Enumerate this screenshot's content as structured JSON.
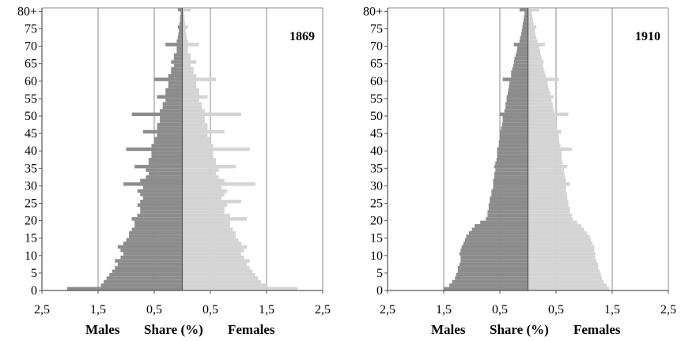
{
  "page": {
    "footer_labels": {
      "left": {
        "males": "Males",
        "share": "Share (%)",
        "females": "Females"
      },
      "right": {
        "males": "Males",
        "share": "Share (%)",
        "females": "Females"
      }
    }
  },
  "colors": {
    "males": "#8c8c8c",
    "females": "#d4d4d4",
    "grid": "#8a8a8a",
    "axis": "#555555"
  },
  "chart_data": [
    {
      "type": "bar",
      "orientation": "horizontal-population-pyramid",
      "title": "1869",
      "xlabel": "Share (%)",
      "x_tick_labels": [
        "2,5",
        "1,5",
        "0,5",
        "0,5",
        "1,5",
        "2,5"
      ],
      "x_tick_positions": [
        -2.5,
        -1.5,
        -0.5,
        0.5,
        1.5,
        2.5
      ],
      "xlim": [
        -2.5,
        2.5
      ],
      "y_tick_labels": [
        "0",
        "5",
        "10",
        "15",
        "20",
        "25",
        "30",
        "35",
        "40",
        "45",
        "50",
        "55",
        "60",
        "65",
        "70",
        "75",
        "80+"
      ],
      "grid": true,
      "series": [
        {
          "name": "Males",
          "values": [
            2.05,
            1.45,
            1.4,
            1.35,
            1.3,
            1.25,
            1.2,
            1.15,
            1.2,
            1.1,
            1.05,
            1.1,
            1.15,
            1.05,
            1.0,
            0.95,
            0.95,
            0.9,
            0.85,
            0.85,
            0.9,
            0.8,
            0.75,
            0.75,
            0.8,
            0.75,
            0.7,
            0.75,
            0.8,
            0.7,
            1.05,
            0.75,
            0.65,
            0.6,
            0.65,
            0.85,
            0.6,
            0.6,
            0.55,
            0.55,
            1.0,
            0.55,
            0.5,
            0.5,
            0.45,
            0.7,
            0.45,
            0.45,
            0.4,
            0.4,
            0.9,
            0.4,
            0.35,
            0.35,
            0.3,
            0.45,
            0.3,
            0.3,
            0.25,
            0.25,
            0.5,
            0.25,
            0.2,
            0.2,
            0.15,
            0.2,
            0.15,
            0.15,
            0.1,
            0.1,
            0.3,
            0.1,
            0.08,
            0.07,
            0.06,
            0.08,
            0.05,
            0.04,
            0.04,
            0.03,
            0.08
          ]
        },
        {
          "name": "Females",
          "values": [
            2.05,
            1.5,
            1.4,
            1.35,
            1.3,
            1.25,
            1.2,
            1.15,
            1.2,
            1.1,
            1.05,
            1.1,
            1.15,
            1.05,
            1.0,
            0.95,
            0.95,
            0.9,
            0.85,
            0.85,
            1.15,
            0.85,
            0.75,
            0.75,
            0.8,
            1.05,
            0.7,
            0.75,
            0.8,
            0.7,
            1.3,
            0.75,
            0.65,
            0.6,
            0.65,
            0.95,
            0.6,
            0.6,
            0.55,
            0.55,
            1.2,
            0.55,
            0.5,
            0.5,
            0.45,
            0.75,
            0.45,
            0.45,
            0.4,
            0.4,
            1.05,
            0.4,
            0.35,
            0.35,
            0.3,
            0.45,
            0.3,
            0.3,
            0.25,
            0.25,
            0.6,
            0.25,
            0.2,
            0.2,
            0.15,
            0.25,
            0.15,
            0.15,
            0.1,
            0.1,
            0.3,
            0.1,
            0.08,
            0.07,
            0.06,
            0.1,
            0.05,
            0.04,
            0.04,
            0.03,
            0.15
          ]
        }
      ]
    },
    {
      "type": "bar",
      "orientation": "horizontal-population-pyramid",
      "title": "1910",
      "xlabel": "Share (%)",
      "x_tick_labels": [
        "2,5",
        "1,5",
        "0,5",
        "0,5",
        "1,5",
        "2,5"
      ],
      "x_tick_positions": [
        -2.5,
        -1.5,
        -0.5,
        0.5,
        1.5,
        2.5
      ],
      "xlim": [
        -2.5,
        2.5
      ],
      "y_tick_labels": [
        "0",
        "5",
        "10",
        "15",
        "20",
        "25",
        "30",
        "35",
        "40",
        "45",
        "50",
        "55",
        "60",
        "65",
        "70",
        "75",
        "80+"
      ],
      "grid": true,
      "series": [
        {
          "name": "Males",
          "values": [
            1.5,
            1.4,
            1.35,
            1.3,
            1.28,
            1.25,
            1.25,
            1.22,
            1.2,
            1.2,
            1.22,
            1.2,
            1.18,
            1.15,
            1.12,
            1.1,
            1.05,
            1.0,
            0.95,
            0.85,
            0.75,
            0.72,
            0.72,
            0.7,
            0.7,
            0.68,
            0.68,
            0.65,
            0.65,
            0.62,
            0.62,
            0.62,
            0.6,
            0.6,
            0.58,
            0.6,
            0.58,
            0.56,
            0.55,
            0.55,
            0.55,
            0.52,
            0.52,
            0.5,
            0.5,
            0.5,
            0.48,
            0.46,
            0.45,
            0.45,
            0.5,
            0.42,
            0.4,
            0.4,
            0.38,
            0.38,
            0.36,
            0.35,
            0.34,
            0.33,
            0.45,
            0.3,
            0.3,
            0.28,
            0.26,
            0.25,
            0.24,
            0.22,
            0.2,
            0.19,
            0.25,
            0.15,
            0.14,
            0.12,
            0.11,
            0.1,
            0.09,
            0.08,
            0.07,
            0.06,
            0.15
          ]
        },
        {
          "name": "Females",
          "values": [
            1.45,
            1.4,
            1.35,
            1.32,
            1.3,
            1.28,
            1.25,
            1.25,
            1.22,
            1.2,
            1.2,
            1.18,
            1.18,
            1.15,
            1.12,
            1.1,
            1.05,
            1.0,
            0.95,
            0.88,
            0.8,
            0.78,
            0.75,
            0.75,
            0.72,
            0.72,
            0.7,
            0.7,
            0.68,
            0.68,
            0.75,
            0.68,
            0.66,
            0.65,
            0.64,
            0.7,
            0.62,
            0.6,
            0.6,
            0.6,
            0.78,
            0.58,
            0.56,
            0.55,
            0.55,
            0.6,
            0.52,
            0.5,
            0.5,
            0.5,
            0.72,
            0.46,
            0.45,
            0.44,
            0.42,
            0.46,
            0.4,
            0.38,
            0.36,
            0.35,
            0.55,
            0.32,
            0.3,
            0.28,
            0.27,
            0.28,
            0.25,
            0.23,
            0.22,
            0.2,
            0.3,
            0.17,
            0.15,
            0.13,
            0.12,
            0.15,
            0.1,
            0.09,
            0.08,
            0.07,
            0.2
          ]
        }
      ]
    }
  ]
}
